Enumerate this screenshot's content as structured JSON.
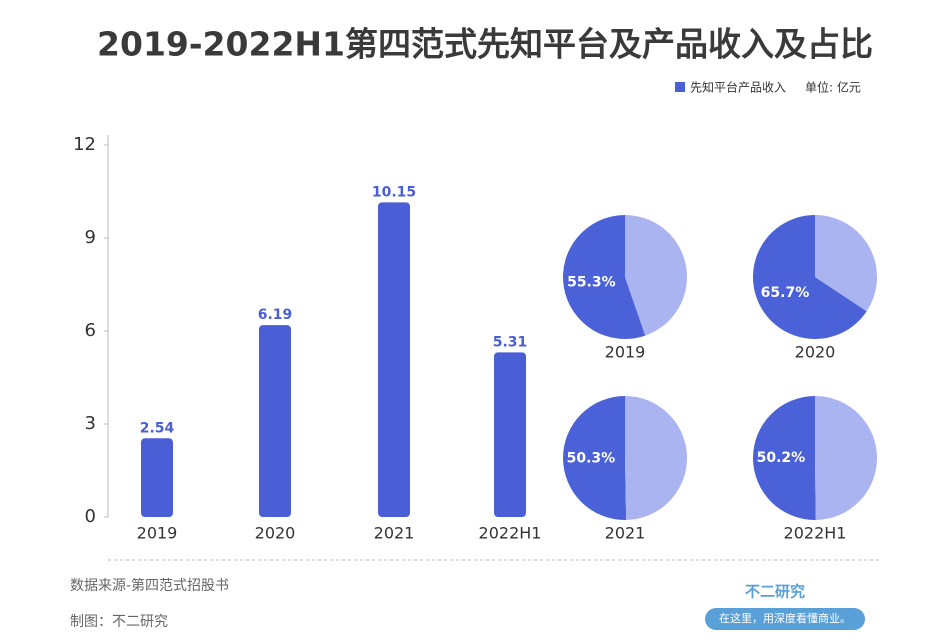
{
  "chart_data": [
    {
      "type": "bar",
      "title": "2019-2022H1第四范式先知平台及产品收入及占比",
      "unit": "单位: 亿元",
      "categories": [
        "2019",
        "2020",
        "2021",
        "2022H1"
      ],
      "series": [
        {
          "name": "先知平台产品收入",
          "color": "#4a5fd6",
          "values": [
            2.54,
            6.19,
            10.15,
            5.31
          ]
        }
      ],
      "ylim": [
        0,
        12
      ],
      "yticks": [
        0,
        3,
        6,
        9,
        12
      ]
    },
    {
      "type": "pie",
      "title": "2019",
      "values": [
        55.3,
        44.7
      ],
      "value_labels": [
        "55.3%",
        null
      ],
      "colors": [
        "#4b61d8",
        "#a9b4f0"
      ]
    },
    {
      "type": "pie",
      "title": "2020",
      "values": [
        65.7,
        34.3
      ],
      "value_labels": [
        "65.7%",
        null
      ],
      "colors": [
        "#4b61d8",
        "#a9b4f0"
      ]
    },
    {
      "type": "pie",
      "title": "2021",
      "values": [
        50.3,
        49.7
      ],
      "value_labels": [
        "50.3%",
        null
      ],
      "colors": [
        "#4b61d8",
        "#a9b4f0"
      ]
    },
    {
      "type": "pie",
      "title": "2022H1",
      "values": [
        50.2,
        49.8
      ],
      "value_labels": [
        "50.2%",
        null
      ],
      "colors": [
        "#4b61d8",
        "#a9b4f0"
      ]
    }
  ],
  "footer": {
    "source": "数据来源-第四范式招股书",
    "maker": "制图：不二研究",
    "brand": "不二研究",
    "slogan": "在这里，用深度看懂商业。"
  }
}
